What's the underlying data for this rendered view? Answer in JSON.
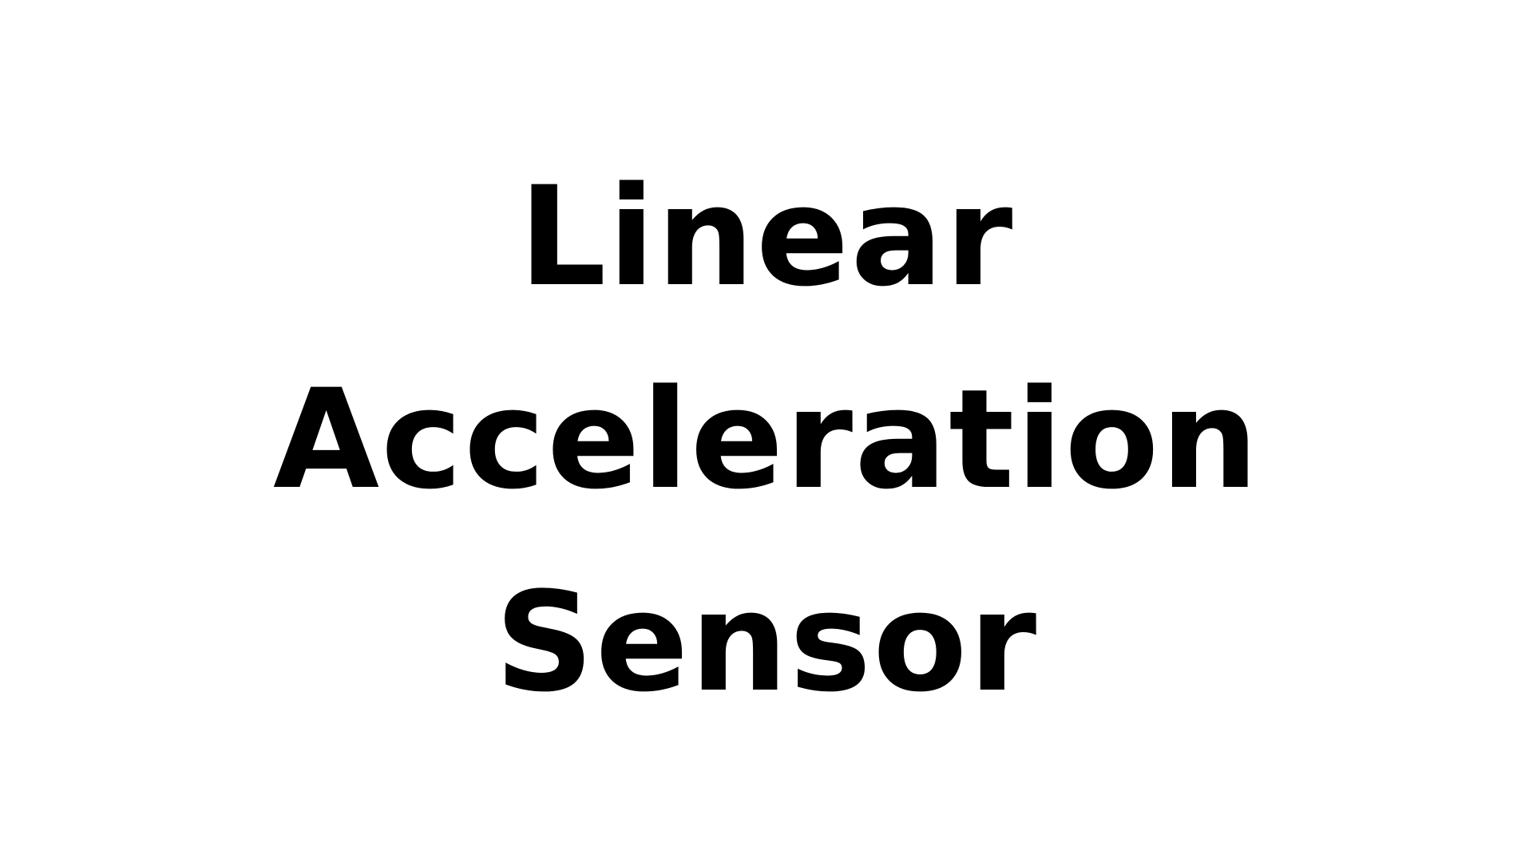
{
  "title": {
    "lines": [
      "Linear",
      "Acceleration",
      "Sensor"
    ]
  },
  "colors": {
    "background": "#ffffff",
    "text": "#000000"
  }
}
